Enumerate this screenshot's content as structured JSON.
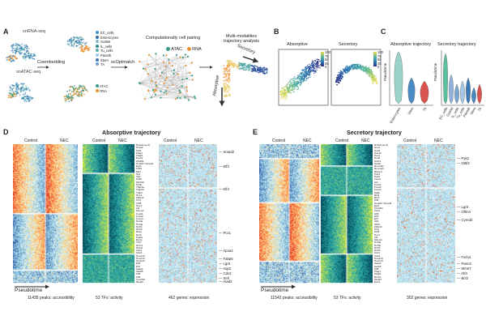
{
  "panels": {
    "A": {
      "label": "A",
      "scrna": "snRNA-seq",
      "scatac": "snATAC-seq",
      "coembedding": "Coembedding",
      "scoptmatch": "scOptmatch",
      "pairing_title": "Computationally cell pairing",
      "multimod_title": [
        "Multi-modalities",
        "trajectory analysis"
      ],
      "legend_cells": [
        "EC_cells",
        "Enterocytes",
        "Goblet",
        "IL_cells",
        "Tu_cells",
        "Paneth",
        "Stem",
        "TA"
      ],
      "legend_cell_colors": [
        "#4a90c2",
        "#2b6fa8",
        "#7fb7d8",
        "#2c8a8a",
        "#5aa9a9",
        "#9ecae1",
        "#3d7ab5",
        "#6fa1c9"
      ],
      "legend_modality": [
        "ATAC",
        "RNA"
      ],
      "legend_modality_colors": [
        "#3c9c8a",
        "#e8953a"
      ],
      "pair_legend": [
        "ATAC",
        "RNA"
      ],
      "traj_absorptive": "Absorptive",
      "traj_secretory": "Secretory"
    },
    "B": {
      "label": "B",
      "absorptive": "Absorptive",
      "secretory": "Secretory",
      "cbar_ticks": [
        "100",
        "75",
        "50",
        "25",
        "0"
      ]
    },
    "C": {
      "label": "C",
      "abs_title": "Absorptive trajectory",
      "sec_title": "Secretory trajectory",
      "ylabel": "Pseudotime",
      "abs_cats": [
        "Enterocytes",
        "Stem",
        "TA"
      ],
      "sec_cats": [
        "EC_cells",
        "Goblet",
        "IL_cells",
        "Tu_cells",
        "Paneth",
        "Stem",
        "TA"
      ]
    },
    "D": {
      "label": "D",
      "title": "Absorptive trajectory",
      "control": "Control",
      "nec": "NEC",
      "pseudotime": "Pseudotime",
      "foot_peaks": "11435 peaks: accessibility",
      "foot_tfs": "53 TFs: activity",
      "foot_genes": "462 genes: expression",
      "tf_names": [
        "Nr4a1(var.2)",
        "Nr4a2",
        "Mzf1",
        "Plag1",
        "Plagl1",
        "Rreb1",
        "Zfp281",
        "Smad3::Smad4",
        "Egr1",
        "Klf15",
        "Maz",
        "Sp1",
        "Sp4",
        "Klf16",
        "Zfp740",
        "Hinfp",
        "Tfap2a",
        "Tfap2b",
        "Tfdp1",
        "Hes1",
        "Zbtb14",
        "Tcf4",
        "Tcfl5",
        "Hey1",
        "Id4",
        "Mecom",
        "Foxa1",
        "Foxa2",
        "Foxo3",
        "Hnf4a",
        "Hnf4g",
        "Nr2f1",
        "Nr2f2",
        "Rarg",
        "Rxra",
        "Ppara",
        "Esrra",
        "Thrb",
        "Nr2c1",
        "Nr2c2",
        "Cdx1",
        "Cdx2",
        "Hoxa13",
        "Hoxb13",
        "Hoxd13",
        "Elf3",
        "Ehf",
        "Gata4",
        "Gata6",
        "Klf4",
        "Klf5",
        "Creb3l3",
        "Nfe2l2"
      ],
      "gene_labels": [
        "Smad2",
        "Elf3",
        "Klf4",
        "Pcx1",
        "Apoa4",
        "Fabp6",
        "Lgr5",
        "Aqp2",
        "Cdx2",
        "Sell",
        "Atad2"
      ]
    },
    "E": {
      "label": "E",
      "title": "Secretory trajectory",
      "control": "Control",
      "nec": "NEC",
      "pseudotime": "Pseudotime",
      "foot_peaks": "11542 peaks: accessibility",
      "foot_tfs": "53 TFs: activity",
      "foot_genes": "302 genes: expression",
      "tf_names": [
        "Nr4a1(var.2)",
        "Sox4",
        "Sox9",
        "Sox12",
        "Hes1",
        "Hes6",
        "Atoh1",
        "Spdef",
        "Neurod1",
        "Neurog3",
        "Nkx2-2",
        "Pax4",
        "Pax6",
        "Insm1",
        "Isl1",
        "Foxa1",
        "Foxa2",
        "Foxa3",
        "Mafb",
        "Rfx6",
        "Rfx3",
        "Klf4",
        "Smad3::Smad4",
        "Egr1",
        "Creb3l1",
        "Xbp1",
        "Atf6",
        "Elf3",
        "Ehf",
        "Gfi1",
        "Gfi1b",
        "Zbtb14",
        "Tcf4",
        "Tcfl5",
        "Hey1",
        "Id4",
        "Mecom",
        "Hnf4a",
        "Hnf4g",
        "Nr2f1",
        "Nr2f2",
        "Cdx1",
        "Cdx2",
        "Hoxa13",
        "Hoxb13",
        "Gata4",
        "Gata6",
        "Klf5",
        "Plag1",
        "Plagl1",
        "Rreb1",
        "Nfe2l2",
        "Esrra"
      ],
      "gene_labels": [
        "Pyk2",
        "Nt5f2",
        "Lgr5",
        "Olfm4",
        "Cyrnd3",
        "Fxcb4",
        "Pann2",
        "MmKT",
        "Atf4",
        "Bcl2"
      ]
    }
  }
}
